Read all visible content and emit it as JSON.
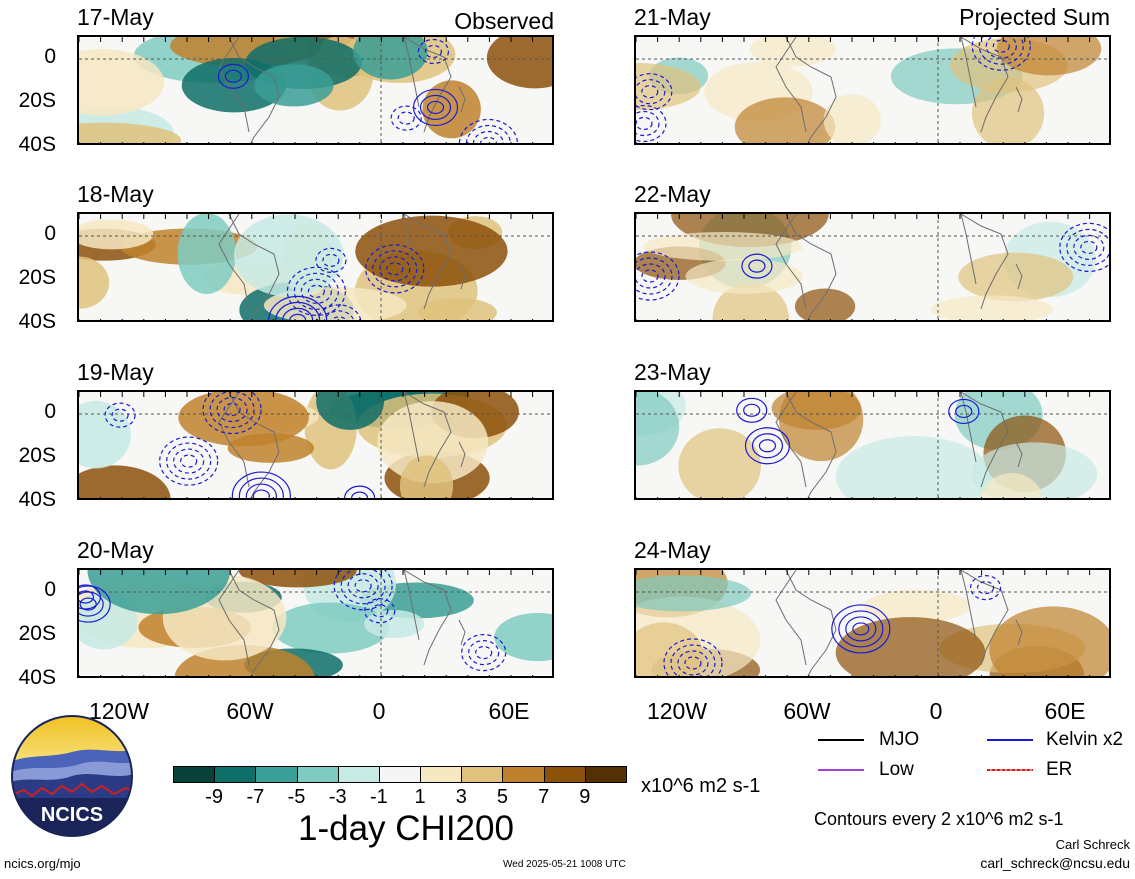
{
  "header": {
    "observed_label": "Observed",
    "projected_label": "Projected Sum"
  },
  "observed_dates": [
    "17-May",
    "18-May",
    "19-May",
    "20-May"
  ],
  "projected_dates": [
    "21-May",
    "22-May",
    "23-May",
    "24-May"
  ],
  "lat_labels": [
    "0",
    "20S",
    "40S"
  ],
  "lon_labels": [
    "120W",
    "60W",
    "0",
    "60E"
  ],
  "colorbar": {
    "colors": [
      "#08403a",
      "#0e6f69",
      "#3a9f97",
      "#7fcbc1",
      "#c7eae4",
      "#f5f5f5",
      "#f6e8c3",
      "#dfc27d",
      "#bf812d",
      "#8c510a",
      "#543005"
    ],
    "tick_labels": [
      "-9",
      "-7",
      "-5",
      "-3",
      "-1",
      "1",
      "3",
      "5",
      "7",
      "9"
    ],
    "units": "x10^6 m2 s-1",
    "title": "1-day CHI200"
  },
  "legend": {
    "items": [
      {
        "label": "MJO",
        "color": "#000000"
      },
      {
        "label": "Kelvin x2",
        "color": "#1a1ad6"
      },
      {
        "label": "Low",
        "color": "#a040e0"
      },
      {
        "label": "ER",
        "color": "#d42020"
      }
    ],
    "contours_note": "Contours every 2 x10^6 m2 s-1"
  },
  "footer": {
    "url": "ncics.org/mjo",
    "timestamp": "Wed 2025-05-21 1008 UTC",
    "author": "Carl Schreck",
    "email": "carl_schreck@ncsu.edu",
    "logo_text": "NCICS"
  }
}
